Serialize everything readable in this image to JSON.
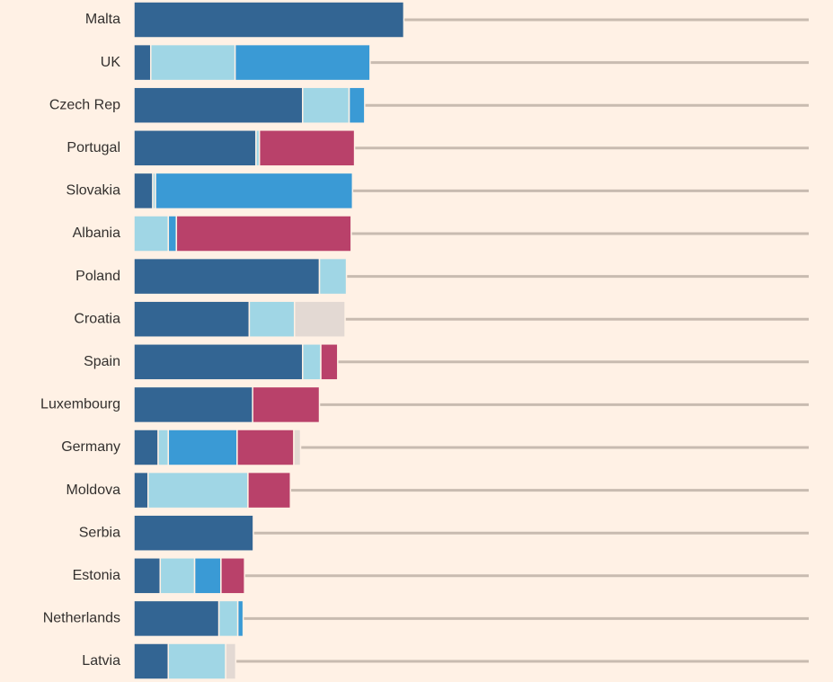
{
  "colors": {
    "background": "#fff1e5",
    "gridline": "#c8bbb0",
    "label_text": "#33302e",
    "segment_separator": "#fff1e5",
    "segment_palette": [
      "#336593",
      "#a0d6e5",
      "#3a9ad5",
      "#b9416a",
      "#e3d9d3"
    ]
  },
  "chart_data": {
    "type": "bar",
    "orientation": "horizontal",
    "stacked": true,
    "title": "",
    "xlabel": "",
    "ylabel": "",
    "legend": "none shown",
    "grid": "horizontal line behind each bar",
    "axis_tick_labels_visible": false,
    "xlim": [
      0,
      100
    ],
    "categories": [
      "Malta",
      "UK",
      "Czech Rep",
      "Portugal",
      "Slovakia",
      "Albania",
      "Poland",
      "Croatia",
      "Spain",
      "Luxembourg",
      "Germany",
      "Moldova",
      "Serbia",
      "Estonia",
      "Netherlands",
      "Latvia"
    ],
    "series": [
      {
        "color": "#336593",
        "values": [
          40.0,
          2.5,
          25.0,
          18.1,
          2.8,
          0,
          27.5,
          17.1,
          25.0,
          17.6,
          3.6,
          2.1,
          17.7,
          3.9,
          12.6,
          5.1
        ]
      },
      {
        "color": "#a0d6e5",
        "values": [
          0,
          12.5,
          6.9,
          0.5,
          0.4,
          5.1,
          4.0,
          6.7,
          2.7,
          0,
          1.5,
          14.8,
          0,
          5.1,
          2.8,
          8.5
        ]
      },
      {
        "color": "#3a9ad5",
        "values": [
          0,
          20.0,
          2.3,
          0,
          29.2,
          1.2,
          0,
          0,
          0,
          0,
          10.2,
          0,
          0,
          3.9,
          0.8,
          0
        ]
      },
      {
        "color": "#b9416a",
        "values": [
          0,
          0,
          0,
          14.1,
          0,
          25.9,
          0,
          0,
          2.5,
          9.9,
          8.4,
          6.3,
          0,
          3.5,
          0,
          0
        ]
      },
      {
        "color": "#e3d9d3",
        "values": [
          0,
          0,
          0,
          0,
          0,
          0,
          0,
          7.5,
          0,
          0,
          1.0,
          0,
          0,
          0,
          0,
          1.5
        ]
      }
    ]
  }
}
